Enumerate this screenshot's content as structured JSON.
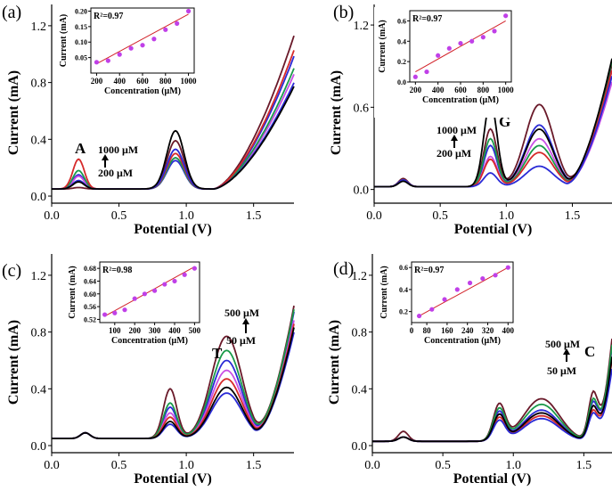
{
  "figure": {
    "series_colors": [
      "#6a1a2a",
      "#2b2bd6",
      "#c94fe6",
      "#1a9a4a",
      "#d62a2a",
      "#2a2ad6",
      "#000000"
    ],
    "fit_color": "#d2232a",
    "point_color": "#c040e8"
  },
  "chart_data": [
    {
      "panel": "(a)",
      "type": "line",
      "xlabel": "Potential (V)",
      "ylabel": "Current (mA)",
      "xlim": [
        0.0,
        1.8
      ],
      "ylim": [
        -0.05,
        1.35
      ],
      "xticks": [
        "0.0",
        "0.5",
        "1.0",
        "1.5"
      ],
      "yticks": [
        "0.0",
        "0.4",
        "0.8",
        "1.2"
      ],
      "annotations": {
        "peak": "A",
        "high": "1000 μM",
        "low": "200 μM"
      },
      "series_profile": {
        "peaks": [
          {
            "x": 0.2,
            "w": 0.06,
            "h": [
              0.01,
              0.1,
              0.09,
              0.13,
              0.21,
              0.06,
              0.05
            ]
          },
          {
            "x": 0.92,
            "w": 0.09,
            "h": [
              0.34,
              0.2,
              0.22,
              0.22,
              0.25,
              0.28,
              0.41
            ]
          }
        ],
        "baseline": 0.05,
        "rise_start": 1.2,
        "end_values": [
          1.27,
          1.1,
          0.95,
          1.0,
          1.15,
          0.88,
          0.85
        ]
      },
      "inset": {
        "r2": "R²=0.97",
        "xlabel": "Concentration (μM)",
        "ylabel": "Current (mA)",
        "xlim": [
          150,
          1050
        ],
        "ylim": [
          0.0,
          0.21
        ],
        "xticks": [
          "200",
          "400",
          "600",
          "800",
          "1000"
        ],
        "yticks": [
          "0.05",
          "0.10",
          "0.15",
          "0.20"
        ],
        "x": [
          200,
          300,
          400,
          500,
          600,
          700,
          800,
          900,
          1000
        ],
        "y": [
          0.035,
          0.04,
          0.06,
          0.08,
          0.09,
          0.11,
          0.14,
          0.16,
          0.2
        ],
        "fit": [
          [
            200,
            0.03
          ],
          [
            1000,
            0.19
          ]
        ]
      }
    },
    {
      "panel": "(b)",
      "type": "line",
      "xlabel": "Potential (V)",
      "ylabel": "Current (mA)",
      "xlim": [
        0.0,
        1.8
      ],
      "ylim": [
        -0.1,
        1.35
      ],
      "xticks": [
        "0.0",
        "0.5",
        "1.0",
        "1.5"
      ],
      "yticks": [
        "0.0",
        "0.6",
        "1.2"
      ],
      "annotations": {
        "peak": "G",
        "high": "1000 μM",
        "low": "200 μM"
      },
      "series_profile": {
        "peaks": [
          {
            "x": 0.88,
            "w": 0.07,
            "h": [
              0.42,
              0.3,
              0.22,
              0.35,
              0.2,
              0.1,
              0.62
            ]
          },
          {
            "x": 1.25,
            "w": 0.15,
            "h": [
              0.6,
              0.45,
              0.35,
              0.3,
              0.25,
              0.15,
              0.42
            ]
          },
          {
            "x": 0.22,
            "w": 0.05,
            "h": [
              0.06,
              0.05,
              0.05,
              0.05,
              0.05,
              0.05,
              0.04
            ]
          }
        ],
        "baseline": 0.02,
        "rise_start": 1.45,
        "end_values": [
          1.05,
          1.0,
          0.9,
          1.08,
          1.0,
          0.95,
          1.1
        ]
      },
      "inset": {
        "r2": "R²=0.97",
        "xlabel": "Concentration (μM)",
        "ylabel": "Current (mA)",
        "xlim": [
          150,
          1050
        ],
        "ylim": [
          0.0,
          0.7
        ],
        "xticks": [
          "200",
          "400",
          "600",
          "800",
          "1000"
        ],
        "yticks": [
          "0.0",
          "0.2",
          "0.4",
          "0.6"
        ],
        "x": [
          200,
          300,
          400,
          500,
          600,
          700,
          800,
          900,
          1000
        ],
        "y": [
          0.05,
          0.1,
          0.26,
          0.33,
          0.38,
          0.4,
          0.44,
          0.5,
          0.65
        ],
        "fit": [
          [
            200,
            0.1
          ],
          [
            1000,
            0.6
          ]
        ]
      }
    },
    {
      "panel": "(c)",
      "type": "line",
      "xlabel": "Potential (V)",
      "ylabel": "Current (mA)",
      "xlim": [
        0.0,
        1.8
      ],
      "ylim": [
        -0.05,
        1.35
      ],
      "xticks": [
        "0.0",
        "0.5",
        "1.0",
        "1.5"
      ],
      "yticks": [
        "0.0",
        "0.4",
        "0.8",
        "1.2"
      ],
      "annotations": {
        "peak": "T",
        "high": "500 μM",
        "low": "50 μM"
      },
      "series_profile": {
        "peaks": [
          {
            "x": 0.88,
            "w": 0.07,
            "h": [
              0.35,
              0.22,
              0.18,
              0.25,
              0.15,
              0.1,
              0.12
            ]
          },
          {
            "x": 1.3,
            "w": 0.16,
            "h": [
              0.72,
              0.55,
              0.48,
              0.62,
              0.42,
              0.32,
              0.36
            ]
          },
          {
            "x": 0.25,
            "w": 0.05,
            "h": [
              0.04,
              0.04,
              0.04,
              0.04,
              0.04,
              0.04,
              0.04
            ]
          }
        ],
        "baseline": 0.05,
        "rise_start": 1.5,
        "end_values": [
          1.1,
          1.05,
          0.98,
          1.07,
          0.95,
          0.88,
          0.92
        ]
      },
      "inset": {
        "r2": "R²=0.98",
        "xlabel": "Concentration (μM)",
        "ylabel": "Current (mA)",
        "xlim": [
          25,
          525
        ],
        "ylim": [
          0.51,
          0.7
        ],
        "xticks": [
          "100",
          "200",
          "300",
          "400",
          "500"
        ],
        "yticks": [
          "0.52",
          "0.56",
          "0.60",
          "0.64",
          "0.68"
        ],
        "x": [
          50,
          100,
          150,
          200,
          250,
          300,
          350,
          400,
          450,
          500
        ],
        "y": [
          0.535,
          0.54,
          0.55,
          0.585,
          0.6,
          0.61,
          0.63,
          0.64,
          0.66,
          0.68
        ],
        "fit": [
          [
            50,
            0.53
          ],
          [
            500,
            0.685
          ]
        ]
      }
    },
    {
      "panel": "(d)",
      "type": "line",
      "xlabel": "Potential (V)",
      "ylabel": "Current (mA)",
      "xlim": [
        0.0,
        1.7
      ],
      "ylim": [
        -0.05,
        1.35
      ],
      "xticks": [
        "0.0",
        "0.5",
        "1.0",
        "1.5"
      ],
      "yticks": [
        "0.0",
        "0.4",
        "0.8",
        "1.2"
      ],
      "annotations": {
        "peak": "C",
        "high": "500 μM",
        "low": "50 μM"
      },
      "series_profile": {
        "peaks": [
          {
            "x": 0.9,
            "w": 0.06,
            "h": [
              0.25,
              0.2,
              0.18,
              0.22,
              0.16,
              0.14,
              0.18
            ]
          },
          {
            "x": 1.2,
            "w": 0.18,
            "h": [
              0.3,
              0.22,
              0.2,
              0.26,
              0.18,
              0.16,
              0.2
            ]
          },
          {
            "x": 1.57,
            "w": 0.05,
            "h": [
              0.35,
              0.28,
              0.25,
              0.3,
              0.22,
              0.2,
              0.25
            ]
          },
          {
            "x": 0.22,
            "w": 0.05,
            "h": [
              0.07,
              0.03,
              0.03,
              0.03,
              0.03,
              0.03,
              0.03
            ]
          }
        ],
        "baseline": 0.03,
        "rise_start": 1.58,
        "end_values": [
          0.85,
          0.78,
          0.72,
          0.8,
          0.68,
          0.6,
          0.7
        ]
      },
      "inset": {
        "r2": "R²=0.97",
        "xlabel": "Concentration (μM)",
        "ylabel": "Current (mA)",
        "xlim": [
          20,
          420
        ],
        "ylim": [
          0.1,
          0.65
        ],
        "xticks": [
          "0",
          "80",
          "160",
          "240",
          "320",
          "400"
        ],
        "yticks": [
          "0.2",
          "0.4",
          "0.6"
        ],
        "x": [
          50,
          100,
          150,
          200,
          250,
          300,
          350,
          400
        ],
        "y": [
          0.16,
          0.22,
          0.31,
          0.4,
          0.46,
          0.5,
          0.53,
          0.6
        ],
        "fit": [
          [
            50,
            0.16
          ],
          [
            400,
            0.6
          ]
        ]
      }
    }
  ]
}
